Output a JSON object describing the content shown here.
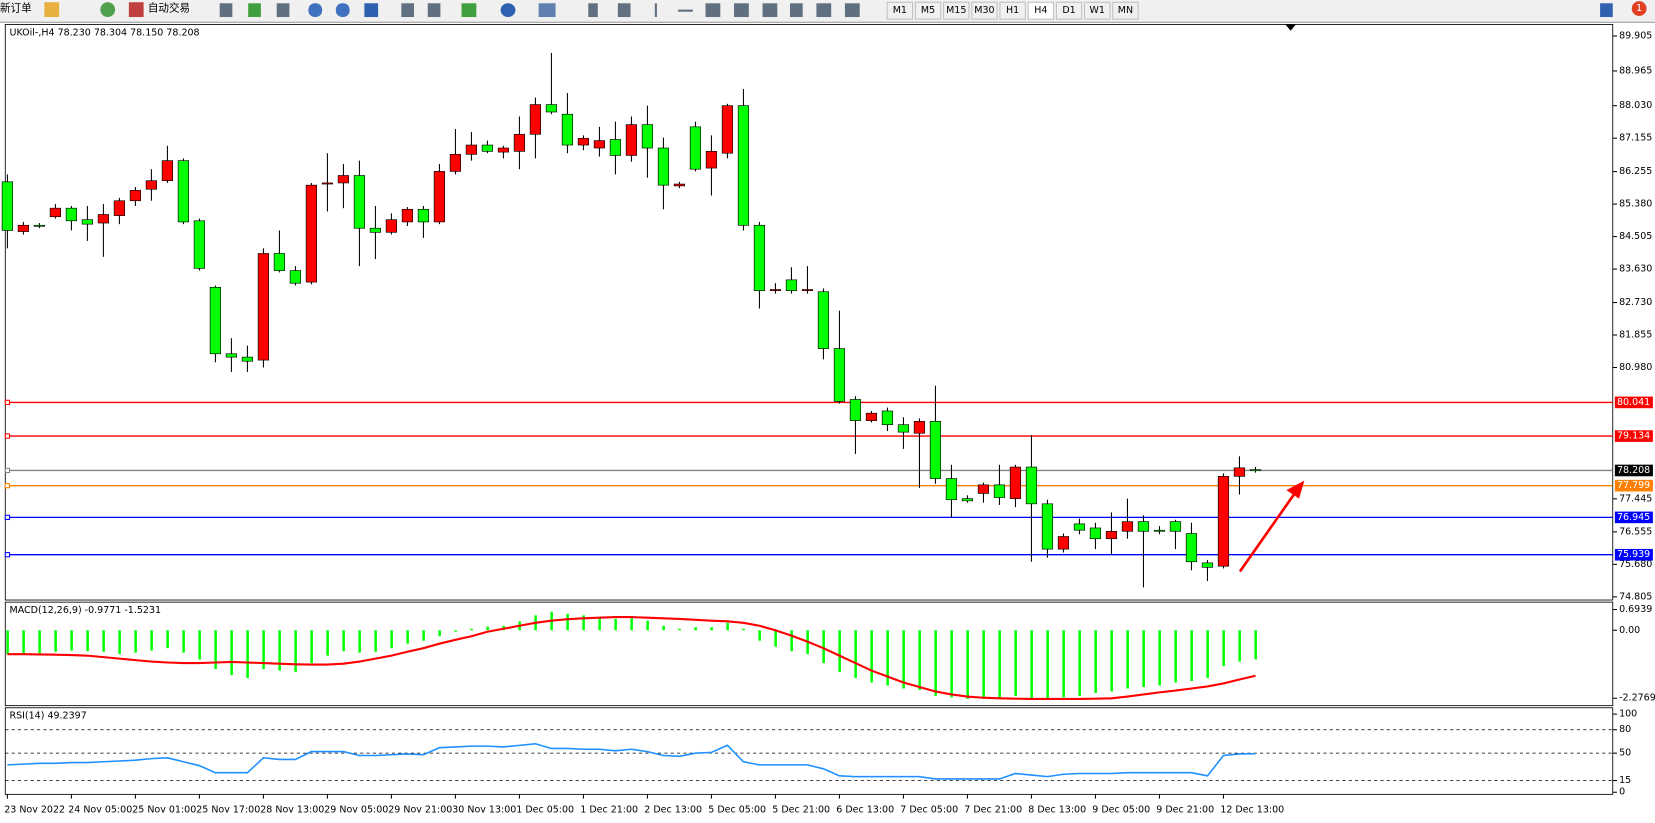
{
  "toolbar": {
    "new_order": "新订单",
    "auto_trade": "自动交易",
    "timeframes": [
      "M1",
      "M5",
      "M15",
      "M30",
      "H1",
      "H4",
      "D1",
      "W1",
      "MN"
    ],
    "badge": "1"
  },
  "chart_data": [
    {
      "type": "candlestick",
      "subtitle": "UKOil-,H4 78.230 78.304 78.150 78.208",
      "up_color": "#ff0000",
      "down_color": "#00ff00",
      "categories": [
        "23 Nov 2022",
        null,
        null,
        null,
        "24 Nov 05:00",
        null,
        null,
        null,
        "25 Nov 01:00",
        null,
        null,
        null,
        "25 Nov 17:00",
        null,
        null,
        null,
        "28 Nov 13:00",
        null,
        null,
        null,
        "29 Nov 05:00",
        null,
        null,
        null,
        "29 Nov 21:00",
        null,
        null,
        null,
        "30 Nov 13:00",
        null,
        null,
        null,
        "1 Dec 05:00",
        null,
        null,
        null,
        "1 Dec 21:00",
        null,
        null,
        null,
        "2 Dec 13:00",
        null,
        null,
        null,
        "5 Dec 05:00",
        null,
        null,
        null,
        "5 Dec 21:00",
        null,
        null,
        null,
        "6 Dec 13:00",
        null,
        null,
        null,
        "7 Dec 05:00",
        null,
        null,
        null,
        "7 Dec 21:00",
        null,
        null,
        null,
        "8 Dec 13:00",
        null,
        null,
        null,
        "9 Dec 05:00",
        null,
        null,
        null,
        "9 Dec 21:00",
        null,
        null,
        null,
        "12 Dec 13:00",
        null,
        null
      ],
      "open": [
        85.98,
        84.64,
        84.81,
        85.04,
        85.27,
        84.96,
        84.87,
        85.07,
        85.47,
        85.78,
        86.01,
        86.55,
        84.93,
        83.14,
        81.35,
        81.26,
        81.18,
        84.05,
        83.59,
        83.28,
        85.92,
        85.95,
        86.15,
        84.73,
        84.62,
        84.9,
        85.24,
        84.9,
        86.26,
        86.72,
        86.97,
        86.78,
        86.8,
        87.26,
        88.06,
        87.8,
        86.97,
        86.89,
        87.12,
        86.69,
        87.52,
        86.89,
        85.87,
        87.46,
        86.35,
        86.75,
        88.03,
        84.81,
        83.05,
        83.34,
        83.05,
        83.02,
        81.49,
        80.12,
        79.55,
        79.81,
        79.44,
        79.21,
        79.53,
        77.99,
        77.45,
        77.59,
        77.82,
        77.45,
        78.3,
        77.31,
        76.09,
        76.77,
        76.66,
        76.37,
        76.57,
        76.83,
        76.6,
        76.83,
        76.51,
        75.72,
        75.63,
        78.05,
        78.23
      ],
      "high": [
        86.18,
        84.9,
        84.87,
        85.38,
        85.33,
        85.33,
        85.38,
        85.55,
        85.84,
        86.32,
        86.95,
        86.61,
        84.99,
        83.19,
        81.77,
        81.57,
        84.19,
        84.67,
        83.71,
        85.95,
        86.75,
        86.46,
        86.55,
        85.33,
        85.13,
        85.3,
        85.33,
        86.46,
        87.4,
        87.32,
        87.09,
        86.95,
        87.74,
        88.25,
        89.45,
        88.37,
        87.23,
        87.46,
        87.6,
        87.74,
        88.03,
        87.17,
        85.98,
        87.6,
        87.23,
        88.08,
        88.48,
        84.9,
        83.25,
        83.68,
        83.71,
        83.11,
        82.51,
        80.21,
        79.81,
        79.9,
        79.64,
        79.61,
        80.49,
        78.36,
        77.54,
        77.88,
        78.36,
        78.36,
        79.16,
        77.42,
        76.51,
        76.91,
        76.8,
        77.08,
        77.45,
        77.0,
        76.71,
        76.88,
        76.8,
        75.8,
        78.13,
        78.59,
        78.304
      ],
      "low": [
        84.19,
        84.56,
        84.73,
        84.99,
        84.67,
        84.39,
        83.96,
        84.84,
        85.33,
        85.47,
        85.95,
        84.84,
        83.59,
        81.12,
        80.86,
        80.86,
        80.98,
        83.54,
        83.19,
        83.22,
        85.18,
        85.27,
        83.71,
        83.9,
        84.56,
        84.79,
        84.47,
        84.84,
        86.18,
        86.55,
        86.75,
        86.61,
        86.32,
        86.61,
        87.8,
        86.75,
        86.83,
        86.66,
        86.18,
        86.52,
        86.09,
        85.24,
        85.81,
        86.26,
        85.61,
        86.61,
        84.67,
        82.57,
        82.97,
        82.97,
        82.97,
        81.2,
        80.01,
        78.65,
        79.5,
        79.27,
        78.79,
        77.74,
        77.85,
        76.94,
        77.34,
        77.34,
        77.28,
        77.22,
        75.75,
        75.86,
        76.0,
        76.49,
        76.09,
        75.94,
        76.37,
        75.06,
        76.49,
        76.09,
        75.52,
        75.23,
        75.57,
        77.56,
        78.15
      ],
      "close": [
        84.67,
        84.81,
        84.8,
        85.27,
        84.93,
        84.84,
        85.1,
        85.47,
        85.75,
        86.01,
        86.55,
        84.9,
        83.65,
        81.35,
        81.26,
        81.15,
        84.05,
        83.59,
        83.25,
        85.89,
        85.95,
        86.15,
        84.73,
        84.62,
        84.96,
        85.24,
        84.9,
        86.26,
        86.72,
        86.97,
        86.8,
        86.89,
        87.26,
        88.06,
        87.86,
        86.97,
        87.15,
        87.09,
        86.69,
        87.52,
        86.89,
        85.89,
        85.92,
        86.32,
        86.8,
        88.03,
        84.81,
        83.05,
        83.08,
        83.05,
        83.08,
        81.49,
        80.07,
        79.55,
        79.75,
        79.44,
        79.24,
        79.53,
        77.99,
        77.42,
        77.39,
        77.82,
        77.48,
        78.3,
        77.31,
        76.09,
        76.43,
        76.6,
        76.37,
        76.57,
        76.83,
        76.57,
        76.57,
        76.57,
        75.75,
        75.6,
        78.05,
        78.28,
        78.208
      ],
      "ylim": [
        74.805,
        89.905
      ],
      "yticks": [
        89.905,
        88.965,
        {
          "value": 88.03,
          "label": "88.030"
        },
        87.155,
        86.255,
        {
          "value": 85.38,
          "label": "85.380"
        },
        84.505,
        {
          "value": 83.63,
          "label": "83.630"
        },
        {
          "value": 82.73,
          "label": "82.730"
        },
        81.855,
        {
          "value": 80.98,
          "label": "80.980"
        },
        77.445,
        76.555,
        {
          "value": 75.68,
          "label": "75.680"
        },
        74.805
      ],
      "levels": [
        {
          "value": 80.041,
          "color": "#ff0000"
        },
        {
          "value": 79.134,
          "color": "#ff0000"
        },
        {
          "value": 78.208,
          "color": "#000000"
        },
        {
          "value": 77.799,
          "color": "#ff8000"
        },
        {
          "value": 76.945,
          "color": "#0000ff"
        },
        {
          "value": 75.939,
          "color": "#0000ff"
        }
      ]
    },
    {
      "type": "macd",
      "title": "MACD(12,26,9) -0.9771 -1.5231",
      "series": [
        {
          "color": "#00ff00",
          "values": [
            -0.8,
            -0.78,
            -0.77,
            -0.72,
            -0.68,
            -0.7,
            -0.72,
            -0.8,
            -0.75,
            -0.68,
            -0.6,
            -0.75,
            -0.98,
            -1.3,
            -1.5,
            -1.6,
            -1.3,
            -1.35,
            -1.4,
            -1.1,
            -0.85,
            -0.7,
            -0.75,
            -0.72,
            -0.6,
            -0.45,
            -0.35,
            -0.2,
            -0.05,
            0.05,
            0.12,
            0.15,
            0.3,
            0.5,
            0.62,
            0.55,
            0.5,
            0.45,
            0.38,
            0.4,
            0.32,
            0.15,
            0.05,
            0.1,
            0.1,
            0.25,
            0.05,
            -0.35,
            -0.55,
            -0.7,
            -0.8,
            -1.1,
            -1.4,
            -1.6,
            -1.75,
            -1.85,
            -1.95,
            -2.0,
            -2.2,
            -2.25,
            -2.3,
            -2.3,
            -2.3,
            -2.2,
            -2.3,
            -2.3,
            -2.25,
            -2.2,
            -2.1,
            -2.05,
            -1.95,
            -1.9,
            -1.85,
            -1.75,
            -1.7,
            -1.6,
            -1.2,
            -1.05,
            -0.9771
          ]
        },
        {
          "color": "#ff0000",
          "values": [
            -0.8,
            -0.8,
            -0.81,
            -0.82,
            -0.83,
            -0.85,
            -0.9,
            -0.95,
            -1.0,
            -1.05,
            -1.08,
            -1.1,
            -1.1,
            -1.08,
            -1.06,
            -1.08,
            -1.1,
            -1.12,
            -1.14,
            -1.15,
            -1.15,
            -1.12,
            -1.05,
            -0.95,
            -0.85,
            -0.72,
            -0.6,
            -0.45,
            -0.32,
            -0.2,
            -0.05,
            0.05,
            0.15,
            0.25,
            0.32,
            0.37,
            0.4,
            0.42,
            0.44,
            0.44,
            0.42,
            0.4,
            0.38,
            0.35,
            0.32,
            0.3,
            0.25,
            0.15,
            0.0,
            -0.18,
            -0.38,
            -0.6,
            -0.85,
            -1.1,
            -1.35,
            -1.55,
            -1.75,
            -1.9,
            -2.05,
            -2.15,
            -2.22,
            -2.26,
            -2.28,
            -2.29,
            -2.3,
            -2.3,
            -2.3,
            -2.3,
            -2.29,
            -2.28,
            -2.22,
            -2.15,
            -2.08,
            -2.02,
            -1.95,
            -1.88,
            -1.78,
            -1.65,
            -1.5231
          ]
        }
      ],
      "ylim": [
        -2.2769,
        0.6939
      ],
      "yticks": [
        0.6939,
        {
          "value": 0,
          "label": "0.00"
        },
        -2.2769
      ]
    },
    {
      "type": "line",
      "title": "RSI(14) 49.2397",
      "color": "#1e90ff",
      "values": [
        35,
        36,
        37,
        37,
        38,
        38,
        39,
        40,
        41,
        43,
        44,
        39,
        34,
        25,
        25,
        25,
        44,
        42,
        42,
        52,
        52,
        52,
        47,
        47,
        48,
        49,
        48,
        57,
        58,
        59,
        59,
        58,
        60,
        62,
        56,
        56,
        55,
        55,
        53,
        55,
        52,
        47,
        46,
        50,
        51,
        60,
        39,
        35,
        35,
        35,
        35,
        30,
        21,
        20,
        20,
        20,
        20,
        20,
        17,
        17,
        17,
        17,
        17,
        24,
        22,
        20,
        23,
        24,
        24,
        24,
        25,
        25,
        25,
        25,
        25,
        21,
        47,
        49,
        49.2397
      ],
      "ylim": [
        0,
        100
      ],
      "yticks": [
        100,
        80,
        50,
        15,
        0
      ],
      "levels": [
        80,
        50,
        15
      ]
    }
  ]
}
